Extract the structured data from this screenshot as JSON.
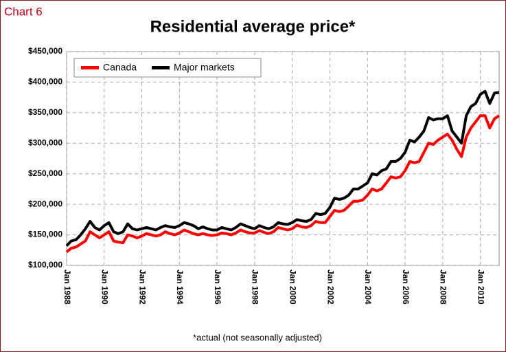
{
  "chart_data": {
    "type": "line",
    "label": "Chart 6",
    "title": "Residential average price*",
    "note": "*actual (not seasonally adjusted)",
    "x": [
      "1988-01",
      "1988-04",
      "1988-07",
      "1988-10",
      "1989-01",
      "1989-04",
      "1989-07",
      "1989-10",
      "1990-01",
      "1990-04",
      "1990-07",
      "1990-10",
      "1991-01",
      "1991-04",
      "1991-07",
      "1991-10",
      "1992-01",
      "1992-04",
      "1992-07",
      "1992-10",
      "1993-01",
      "1993-04",
      "1993-07",
      "1993-10",
      "1994-01",
      "1994-04",
      "1994-07",
      "1994-10",
      "1995-01",
      "1995-04",
      "1995-07",
      "1995-10",
      "1996-01",
      "1996-04",
      "1996-07",
      "1996-10",
      "1997-01",
      "1997-04",
      "1997-07",
      "1997-10",
      "1998-01",
      "1998-04",
      "1998-07",
      "1998-10",
      "1999-01",
      "1999-04",
      "1999-07",
      "1999-10",
      "2000-01",
      "2000-04",
      "2000-07",
      "2000-10",
      "2001-01",
      "2001-04",
      "2001-07",
      "2001-10",
      "2002-01",
      "2002-04",
      "2002-07",
      "2002-10",
      "2003-01",
      "2003-04",
      "2003-07",
      "2003-10",
      "2004-01",
      "2004-04",
      "2004-07",
      "2004-10",
      "2005-01",
      "2005-04",
      "2005-07",
      "2005-10",
      "2006-01",
      "2006-04",
      "2006-07",
      "2006-10",
      "2007-01",
      "2007-04",
      "2007-07",
      "2007-10",
      "2008-01",
      "2008-04",
      "2008-07",
      "2008-10",
      "2009-01",
      "2009-04",
      "2009-07",
      "2009-10",
      "2010-01",
      "2010-04",
      "2010-07",
      "2010-10",
      "2011-01"
    ],
    "series": [
      {
        "name": "Canada",
        "color": "#ff0000",
        "values": [
          122000,
          128000,
          130000,
          135000,
          140000,
          155000,
          150000,
          145000,
          150000,
          155000,
          140000,
          138000,
          137000,
          150000,
          148000,
          145000,
          148000,
          152000,
          150000,
          148000,
          150000,
          155000,
          152000,
          150000,
          153000,
          158000,
          155000,
          152000,
          150000,
          152000,
          150000,
          149000,
          150000,
          153000,
          152000,
          150000,
          153000,
          158000,
          155000,
          153000,
          153000,
          157000,
          154000,
          152000,
          155000,
          162000,
          160000,
          158000,
          160000,
          166000,
          163000,
          162000,
          165000,
          172000,
          170000,
          170000,
          180000,
          190000,
          188000,
          190000,
          197000,
          205000,
          205000,
          207000,
          215000,
          225000,
          222000,
          225000,
          235000,
          245000,
          243000,
          245000,
          255000,
          270000,
          268000,
          270000,
          285000,
          300000,
          298000,
          305000,
          310000,
          315000,
          305000,
          290000,
          278000,
          310000,
          325000,
          335000,
          345000,
          345000,
          325000,
          340000,
          345000
        ]
      },
      {
        "name": "Major markets",
        "color": "#000000",
        "values": [
          132000,
          140000,
          142000,
          150000,
          160000,
          172000,
          162000,
          158000,
          165000,
          170000,
          155000,
          152000,
          155000,
          168000,
          160000,
          158000,
          160000,
          162000,
          160000,
          158000,
          162000,
          165000,
          163000,
          162000,
          165000,
          170000,
          168000,
          165000,
          160000,
          163000,
          160000,
          158000,
          158000,
          162000,
          160000,
          158000,
          162000,
          168000,
          165000,
          162000,
          160000,
          165000,
          162000,
          160000,
          163000,
          170000,
          168000,
          167000,
          170000,
          175000,
          173000,
          172000,
          175000,
          185000,
          183000,
          185000,
          195000,
          210000,
          208000,
          210000,
          215000,
          225000,
          225000,
          230000,
          235000,
          250000,
          248000,
          255000,
          258000,
          270000,
          270000,
          275000,
          285000,
          305000,
          302000,
          310000,
          320000,
          342000,
          338000,
          340000,
          340000,
          345000,
          320000,
          310000,
          300000,
          345000,
          360000,
          365000,
          380000,
          385000,
          365000,
          382000,
          383000
        ]
      }
    ],
    "xlim": [
      "1988-01",
      "2011-01"
    ],
    "xticks": [
      {
        "value": "1988-01",
        "label": "Jan 1988"
      },
      {
        "value": "1990-01",
        "label": "Jan 1990"
      },
      {
        "value": "1992-01",
        "label": "Jan 1992"
      },
      {
        "value": "1994-01",
        "label": "Jan 1994"
      },
      {
        "value": "1996-01",
        "label": "Jan 1996"
      },
      {
        "value": "1998-01",
        "label": "Jan 1998"
      },
      {
        "value": "2000-01",
        "label": "Jan 2000"
      },
      {
        "value": "2002-01",
        "label": "Jan 2002"
      },
      {
        "value": "2004-01",
        "label": "Jan 2004"
      },
      {
        "value": "2006-01",
        "label": "Jan 2006"
      },
      {
        "value": "2008-01",
        "label": "Jan 2008"
      },
      {
        "value": "2010-01",
        "label": "Jan 2010"
      }
    ],
    "ylim": [
      100000,
      450000
    ],
    "yticks": [
      {
        "value": 100000,
        "label": "$100,000"
      },
      {
        "value": 150000,
        "label": "$150,000"
      },
      {
        "value": 200000,
        "label": "$200,000"
      },
      {
        "value": 250000,
        "label": "$250,000"
      },
      {
        "value": 300000,
        "label": "$300,000"
      },
      {
        "value": 350000,
        "label": "$350,000"
      },
      {
        "value": 400000,
        "label": "$400,000"
      },
      {
        "value": 450000,
        "label": "$450,000"
      }
    ],
    "grid": true,
    "legend": "top-left"
  }
}
